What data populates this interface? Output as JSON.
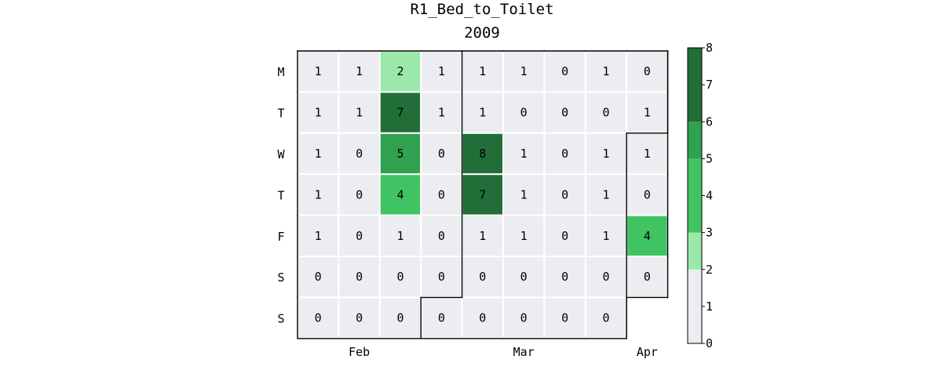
{
  "chart_data": {
    "type": "heatmap",
    "title": "R1_Bed_to_Toilet",
    "subtitle": "2009",
    "row_labels": [
      "M",
      "T",
      "W",
      "T",
      "F",
      "S",
      "S"
    ],
    "month_labels": [
      {
        "label": "Feb",
        "week": 1.5
      },
      {
        "label": "Mar",
        "week": 5.5
      },
      {
        "label": "Apr",
        "week": 8.5
      }
    ],
    "values": [
      [
        1,
        1,
        2,
        1,
        1,
        1,
        0,
        1,
        0
      ],
      [
        1,
        1,
        7,
        1,
        1,
        0,
        0,
        0,
        1
      ],
      [
        1,
        0,
        5,
        0,
        8,
        1,
        0,
        1,
        1
      ],
      [
        1,
        0,
        4,
        0,
        7,
        1,
        0,
        1,
        0
      ],
      [
        1,
        0,
        1,
        0,
        1,
        1,
        0,
        1,
        4
      ],
      [
        0,
        0,
        0,
        0,
        0,
        0,
        0,
        0,
        0
      ],
      [
        0,
        0,
        0,
        0,
        0,
        0,
        0,
        0,
        null
      ]
    ],
    "month_boundaries": [
      {
        "from_week": 3,
        "from_day": 6
      },
      {
        "from_week": 8,
        "from_day": 2
      }
    ],
    "colorbar": {
      "ticks": [
        0,
        1,
        2,
        3,
        4,
        5,
        6,
        7,
        8
      ],
      "range": [
        0,
        8
      ],
      "bins": [
        {
          "from": 0,
          "to": 2,
          "color": "#ebedf0"
        },
        {
          "from": 2,
          "to": 3,
          "color": "#9be9a8"
        },
        {
          "from": 3,
          "to": 5,
          "color": "#40c463"
        },
        {
          "from": 5,
          "to": 6,
          "color": "#30a14e"
        },
        {
          "from": 6,
          "to": 8,
          "color": "#216e39"
        }
      ]
    }
  }
}
